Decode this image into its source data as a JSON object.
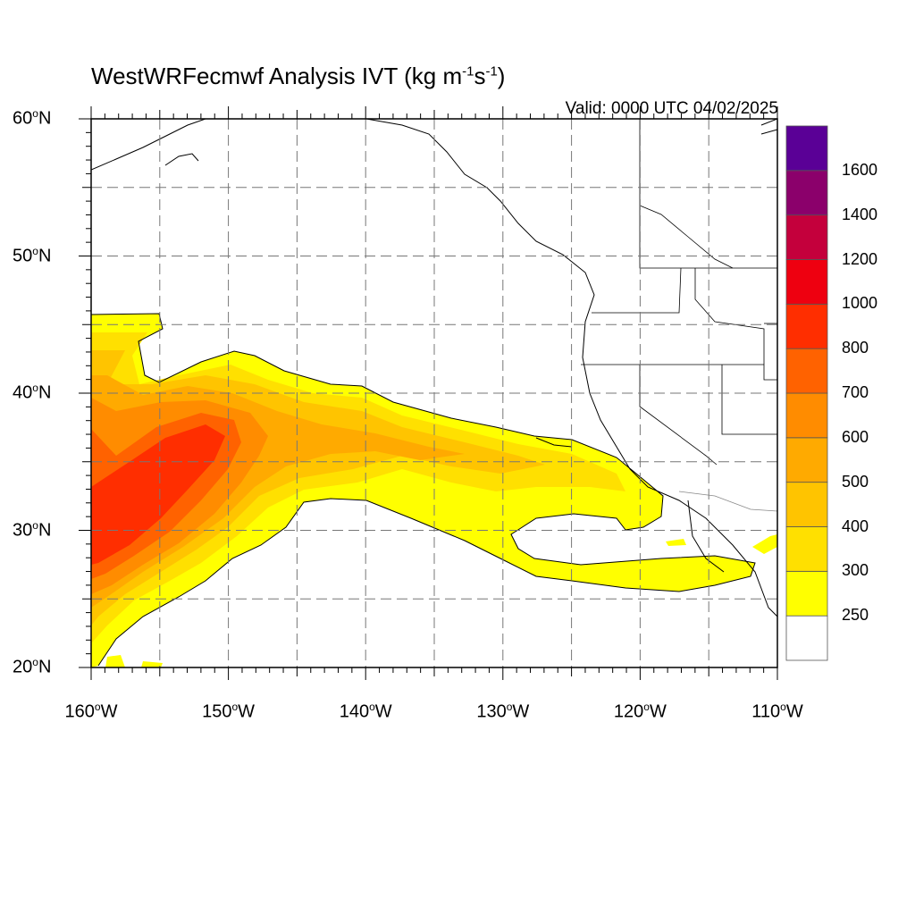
{
  "title": {
    "main": "WestWRFecmwf Analysis IVT (kg m",
    "sup1": "-1",
    "mid": "s",
    "sup2": "-1",
    "end": ")"
  },
  "valid_label": "Valid: 0000 UTC 04/02/2025",
  "map": {
    "lon_range": [
      -160,
      -110
    ],
    "lat_range": [
      20,
      60
    ],
    "lat_ticks": [
      {
        "value": 60,
        "label": "60",
        "sup": "o",
        "hemi": "N"
      },
      {
        "value": 50,
        "label": "50",
        "sup": "o",
        "hemi": "N"
      },
      {
        "value": 40,
        "label": "40",
        "sup": "o",
        "hemi": "N"
      },
      {
        "value": 30,
        "label": "30",
        "sup": "o",
        "hemi": "N"
      },
      {
        "value": 20,
        "label": "20",
        "sup": "o",
        "hemi": "N"
      }
    ],
    "lon_ticks": [
      {
        "value": -160,
        "label": "160",
        "sup": "o",
        "hemi": "W"
      },
      {
        "value": -150,
        "label": "150",
        "sup": "o",
        "hemi": "W"
      },
      {
        "value": -140,
        "label": "140",
        "sup": "o",
        "hemi": "W"
      },
      {
        "value": -130,
        "label": "130",
        "sup": "o",
        "hemi": "W"
      },
      {
        "value": -120,
        "label": "120",
        "sup": "o",
        "hemi": "W"
      },
      {
        "value": -110,
        "label": "110",
        "sup": "o",
        "hemi": "W"
      }
    ],
    "grid": "dashed every 5 degrees"
  },
  "colorbar": {
    "levels": [
      "250",
      "300",
      "400",
      "500",
      "600",
      "700",
      "800",
      "1000",
      "1200",
      "1400",
      "1600"
    ],
    "colors": [
      "#ffffff",
      "#ffff00",
      "#ffe000",
      "#ffc400",
      "#ffaa00",
      "#ff8c00",
      "#ff6200",
      "#ff2e00",
      "#ee0010",
      "#c4003c",
      "#8b006b",
      "#5a0096"
    ]
  }
}
